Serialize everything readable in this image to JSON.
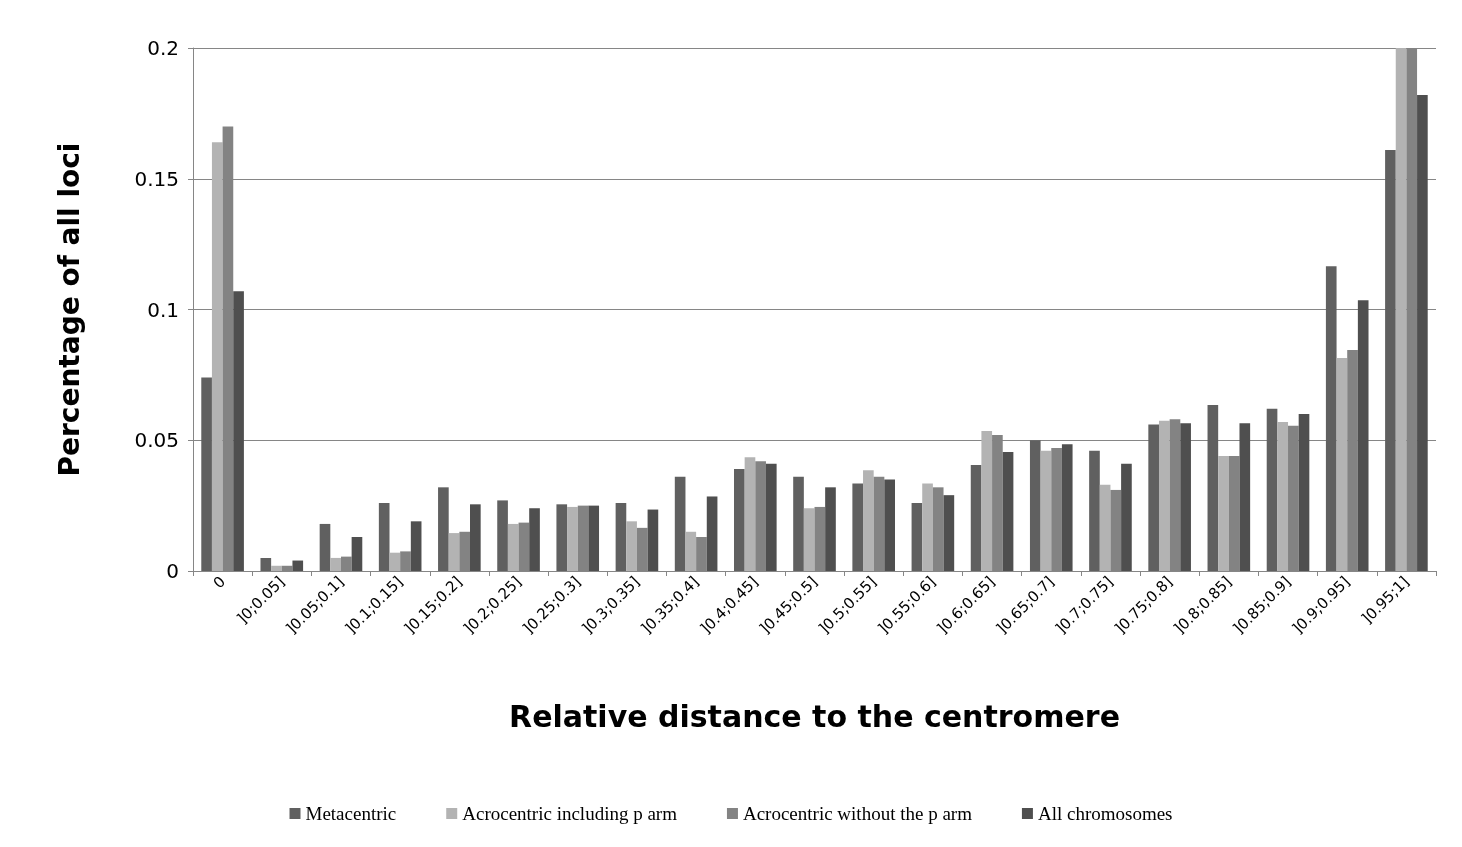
{
  "chart_data": {
    "type": "bar",
    "xlabel": "Relative distance to the centromere",
    "ylabel": "Percentage of all loci",
    "categories": [
      "0",
      "]0;0.05]",
      "]0.05;0.1]",
      "]0.1;0.15]",
      "]0.15;0.2]",
      "]0.2;0.25]",
      "]0.25;0.3]",
      "]0.3;0.35]",
      "]0.35;0.4]",
      "]0.4;0.45]",
      "]0.45;0.5]",
      "]0.5;0.55]",
      "]0.55;0.6]",
      "]0.6;0.65]",
      "]0.65;0.7]",
      "]0.7;0.75]",
      "]0.75;0.8]",
      "]0.8;0.85]",
      "]0.85;0.9]",
      "]0.9;0.95]",
      "]0.95;1]"
    ],
    "series": [
      {
        "name": "Metacentric",
        "color": "#606060",
        "values": [
          0.074,
          0.005,
          0.018,
          0.026,
          0.032,
          0.027,
          0.0255,
          0.026,
          0.036,
          0.039,
          0.036,
          0.0335,
          0.026,
          0.0405,
          0.05,
          0.046,
          0.056,
          0.0635,
          0.062,
          0.1165,
          0.161
        ]
      },
      {
        "name": "Acrocentric including p arm",
        "color": "#b3b3b3",
        "values": [
          0.164,
          0.002,
          0.005,
          0.007,
          0.0145,
          0.018,
          0.0245,
          0.019,
          0.015,
          0.0435,
          0.024,
          0.0385,
          0.0335,
          0.0535,
          0.046,
          0.033,
          0.0575,
          0.044,
          0.057,
          0.0815,
          0.2
        ]
      },
      {
        "name": "Acrocentric without the p arm",
        "color": "#838383",
        "values": [
          0.17,
          0.002,
          0.0055,
          0.0075,
          0.015,
          0.0185,
          0.025,
          0.0165,
          0.013,
          0.042,
          0.0245,
          0.036,
          0.032,
          0.052,
          0.047,
          0.031,
          0.058,
          0.044,
          0.0555,
          0.0845,
          0.2
        ]
      },
      {
        "name": "All chromosomes",
        "color": "#4f4f4f",
        "values": [
          0.107,
          0.004,
          0.013,
          0.019,
          0.0255,
          0.024,
          0.025,
          0.0235,
          0.0285,
          0.041,
          0.032,
          0.035,
          0.029,
          0.0455,
          0.0485,
          0.041,
          0.0565,
          0.0565,
          0.06,
          0.1035,
          0.182
        ]
      }
    ],
    "ylim": [
      0,
      0.2
    ],
    "yticks": [
      0,
      0.05,
      0.1,
      0.15,
      0.2
    ],
    "grid": "y",
    "legend": "bottom"
  }
}
